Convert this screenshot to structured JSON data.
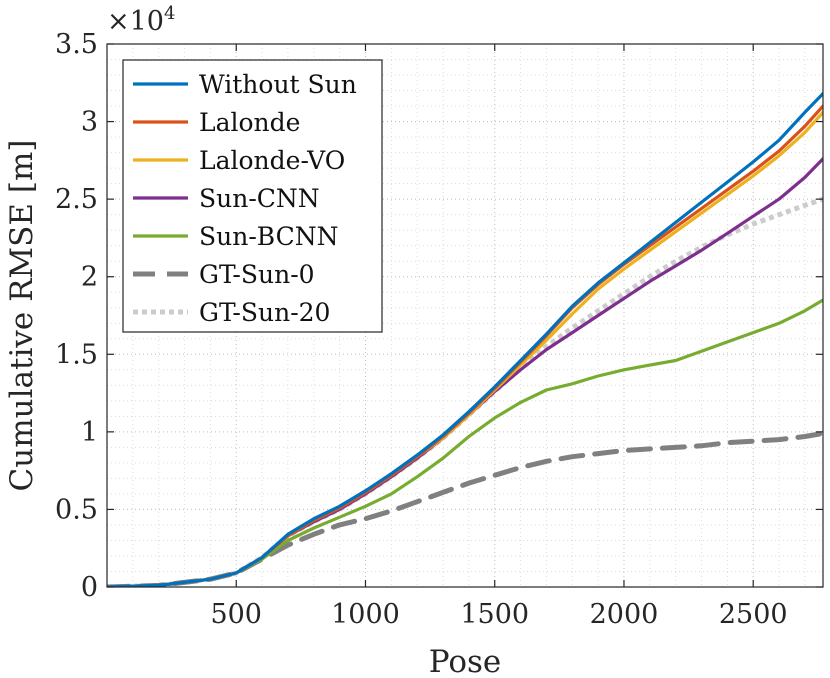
{
  "chart_data": {
    "type": "line",
    "title": "",
    "xlabel": "Pose",
    "ylabel": "Cumulative RMSE [m]",
    "y_exponent_label": {
      "base": "×10",
      "power": "4"
    },
    "xlim": [
      0,
      2770
    ],
    "ylim": [
      0,
      3.5
    ],
    "xticks": [
      500,
      1000,
      1500,
      2000,
      2500
    ],
    "xtick_labels": [
      "500",
      "1000",
      "1500",
      "2000",
      "2500"
    ],
    "yticks": [
      0,
      0.5,
      1,
      1.5,
      2,
      2.5,
      3,
      3.5
    ],
    "ytick_labels": [
      "0",
      "0.5",
      "1",
      "1.5",
      "2",
      "2.5",
      "3",
      "3.5"
    ],
    "grid": "on (dotted, major and minor)",
    "legend_position": "top-left",
    "series": [
      {
        "name": "Without Sun",
        "color": "#0072BD",
        "style": "solid",
        "points": [
          [
            0,
            0
          ],
          [
            200,
            0.01
          ],
          [
            400,
            0.05
          ],
          [
            500,
            0.09
          ],
          [
            600,
            0.19
          ],
          [
            700,
            0.34
          ],
          [
            800,
            0.44
          ],
          [
            900,
            0.52
          ],
          [
            1000,
            0.62
          ],
          [
            1100,
            0.73
          ],
          [
            1200,
            0.85
          ],
          [
            1300,
            0.98
          ],
          [
            1400,
            1.13
          ],
          [
            1500,
            1.29
          ],
          [
            1600,
            1.46
          ],
          [
            1700,
            1.63
          ],
          [
            1800,
            1.81
          ],
          [
            1900,
            1.96
          ],
          [
            2000,
            2.09
          ],
          [
            2100,
            2.22
          ],
          [
            2200,
            2.35
          ],
          [
            2300,
            2.48
          ],
          [
            2400,
            2.61
          ],
          [
            2500,
            2.74
          ],
          [
            2600,
            2.88
          ],
          [
            2700,
            3.06
          ],
          [
            2770,
            3.18
          ]
        ]
      },
      {
        "name": "Lalonde",
        "color": "#D95319",
        "style": "solid",
        "points": [
          [
            0,
            0
          ],
          [
            200,
            0.01
          ],
          [
            400,
            0.05
          ],
          [
            500,
            0.09
          ],
          [
            600,
            0.19
          ],
          [
            700,
            0.33
          ],
          [
            800,
            0.43
          ],
          [
            900,
            0.51
          ],
          [
            1000,
            0.61
          ],
          [
            1100,
            0.72
          ],
          [
            1200,
            0.84
          ],
          [
            1300,
            0.97
          ],
          [
            1400,
            1.12
          ],
          [
            1500,
            1.28
          ],
          [
            1600,
            1.45
          ],
          [
            1700,
            1.62
          ],
          [
            1800,
            1.8
          ],
          [
            1900,
            1.95
          ],
          [
            2000,
            2.08
          ],
          [
            2100,
            2.2
          ],
          [
            2200,
            2.32
          ],
          [
            2300,
            2.44
          ],
          [
            2400,
            2.56
          ],
          [
            2500,
            2.68
          ],
          [
            2600,
            2.81
          ],
          [
            2700,
            2.97
          ],
          [
            2770,
            3.1
          ]
        ]
      },
      {
        "name": "Lalonde-VO",
        "color": "#EDB120",
        "style": "solid",
        "points": [
          [
            0,
            0
          ],
          [
            200,
            0.01
          ],
          [
            400,
            0.05
          ],
          [
            500,
            0.09
          ],
          [
            600,
            0.19
          ],
          [
            700,
            0.33
          ],
          [
            800,
            0.43
          ],
          [
            900,
            0.51
          ],
          [
            1000,
            0.61
          ],
          [
            1100,
            0.72
          ],
          [
            1200,
            0.84
          ],
          [
            1300,
            0.96
          ],
          [
            1400,
            1.11
          ],
          [
            1500,
            1.27
          ],
          [
            1600,
            1.43
          ],
          [
            1700,
            1.59
          ],
          [
            1800,
            1.76
          ],
          [
            1900,
            1.92
          ],
          [
            2000,
            2.05
          ],
          [
            2100,
            2.17
          ],
          [
            2200,
            2.29
          ],
          [
            2300,
            2.41
          ],
          [
            2400,
            2.53
          ],
          [
            2500,
            2.65
          ],
          [
            2600,
            2.78
          ],
          [
            2700,
            2.93
          ],
          [
            2770,
            3.06
          ]
        ]
      },
      {
        "name": "Sun-CNN",
        "color": "#7E2F8E",
        "style": "solid",
        "points": [
          [
            0,
            0
          ],
          [
            200,
            0.01
          ],
          [
            400,
            0.05
          ],
          [
            500,
            0.09
          ],
          [
            600,
            0.19
          ],
          [
            700,
            0.33
          ],
          [
            800,
            0.42
          ],
          [
            900,
            0.5
          ],
          [
            1000,
            0.6
          ],
          [
            1100,
            0.71
          ],
          [
            1200,
            0.83
          ],
          [
            1300,
            0.96
          ],
          [
            1400,
            1.11
          ],
          [
            1500,
            1.26
          ],
          [
            1600,
            1.4
          ],
          [
            1700,
            1.53
          ],
          [
            1800,
            1.64
          ],
          [
            1900,
            1.75
          ],
          [
            2000,
            1.86
          ],
          [
            2100,
            1.97
          ],
          [
            2200,
            2.07
          ],
          [
            2300,
            2.17
          ],
          [
            2400,
            2.28
          ],
          [
            2500,
            2.39
          ],
          [
            2600,
            2.5
          ],
          [
            2700,
            2.64
          ],
          [
            2770,
            2.76
          ]
        ]
      },
      {
        "name": "Sun-BCNN",
        "color": "#77AC30",
        "style": "solid",
        "points": [
          [
            0,
            0
          ],
          [
            200,
            0.01
          ],
          [
            400,
            0.05
          ],
          [
            500,
            0.09
          ],
          [
            600,
            0.18
          ],
          [
            700,
            0.3
          ],
          [
            800,
            0.38
          ],
          [
            900,
            0.45
          ],
          [
            1000,
            0.52
          ],
          [
            1100,
            0.6
          ],
          [
            1200,
            0.71
          ],
          [
            1300,
            0.83
          ],
          [
            1400,
            0.97
          ],
          [
            1500,
            1.09
          ],
          [
            1600,
            1.19
          ],
          [
            1700,
            1.27
          ],
          [
            1800,
            1.31
          ],
          [
            1900,
            1.36
          ],
          [
            2000,
            1.4
          ],
          [
            2100,
            1.43
          ],
          [
            2200,
            1.46
          ],
          [
            2300,
            1.52
          ],
          [
            2400,
            1.58
          ],
          [
            2500,
            1.64
          ],
          [
            2600,
            1.7
          ],
          [
            2700,
            1.78
          ],
          [
            2770,
            1.85
          ]
        ]
      },
      {
        "name": "GT-Sun-0",
        "color": "#808080",
        "style": "dashed",
        "points": [
          [
            0,
            0
          ],
          [
            200,
            0.01
          ],
          [
            400,
            0.05
          ],
          [
            500,
            0.09
          ],
          [
            600,
            0.18
          ],
          [
            700,
            0.27
          ],
          [
            800,
            0.34
          ],
          [
            900,
            0.4
          ],
          [
            1000,
            0.44
          ],
          [
            1100,
            0.49
          ],
          [
            1200,
            0.55
          ],
          [
            1300,
            0.61
          ],
          [
            1400,
            0.67
          ],
          [
            1500,
            0.72
          ],
          [
            1600,
            0.77
          ],
          [
            1700,
            0.81
          ],
          [
            1800,
            0.84
          ],
          [
            1900,
            0.86
          ],
          [
            2000,
            0.88
          ],
          [
            2100,
            0.89
          ],
          [
            2200,
            0.9
          ],
          [
            2300,
            0.91
          ],
          [
            2400,
            0.93
          ],
          [
            2500,
            0.94
          ],
          [
            2600,
            0.95
          ],
          [
            2700,
            0.97
          ],
          [
            2770,
            0.99
          ]
        ]
      },
      {
        "name": "GT-Sun-20",
        "color": "#CCCCCC",
        "style": "dotted",
        "points": [
          [
            0,
            0
          ],
          [
            200,
            0.01
          ],
          [
            400,
            0.05
          ],
          [
            500,
            0.09
          ],
          [
            600,
            0.19
          ],
          [
            700,
            0.33
          ],
          [
            800,
            0.42
          ],
          [
            900,
            0.5
          ],
          [
            1000,
            0.6
          ],
          [
            1100,
            0.71
          ],
          [
            1200,
            0.83
          ],
          [
            1300,
            0.96
          ],
          [
            1400,
            1.11
          ],
          [
            1500,
            1.26
          ],
          [
            1600,
            1.41
          ],
          [
            1700,
            1.55
          ],
          [
            1800,
            1.67
          ],
          [
            1900,
            1.78
          ],
          [
            2000,
            1.89
          ],
          [
            2100,
            2.0
          ],
          [
            2200,
            2.1
          ],
          [
            2300,
            2.19
          ],
          [
            2400,
            2.27
          ],
          [
            2500,
            2.34
          ],
          [
            2600,
            2.4
          ],
          [
            2700,
            2.46
          ],
          [
            2770,
            2.5
          ]
        ]
      }
    ]
  }
}
